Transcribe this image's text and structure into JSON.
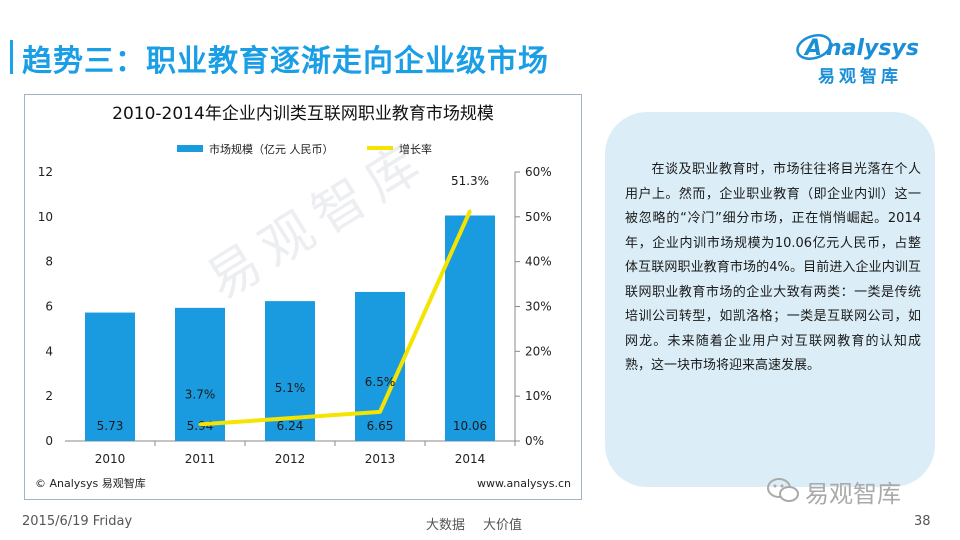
{
  "header": {
    "title": "趋势三：职业教育逐渐走向企业级市场",
    "logo_text": "nalysys",
    "logo_initial": "A",
    "logo_cn": "易观智库"
  },
  "chart_data": {
    "type": "bar",
    "title": "2010-2014年企业内训类互联网职业教育市场规模",
    "categories": [
      "2010",
      "2011",
      "2012",
      "2013",
      "2014"
    ],
    "series": [
      {
        "name": "市场规模（亿元 人民币）",
        "kind": "bar",
        "axis": "left",
        "values": [
          5.73,
          5.94,
          6.24,
          6.65,
          10.06
        ],
        "labels": [
          "5.73",
          "5.94",
          "6.24",
          "6.65",
          "10.06"
        ],
        "color": "#1a9be0"
      },
      {
        "name": "增长率",
        "kind": "line",
        "axis": "right",
        "values": [
          null,
          3.7,
          5.1,
          6.5,
          51.3
        ],
        "labels": [
          "",
          "3.7%",
          "5.1%",
          "6.5%",
          "51.3%"
        ],
        "color": "#f5e400"
      }
    ],
    "ylim_left": [
      0,
      12
    ],
    "yticks_left": [
      "0",
      "2",
      "4",
      "6",
      "8",
      "10",
      "12"
    ],
    "ylim_right": [
      0,
      60
    ],
    "yticks_right": [
      "0%",
      "10%",
      "20%",
      "30%",
      "40%",
      "50%",
      "60%"
    ],
    "source_left": "© Analysys 易观智库",
    "source_right": "www.analysys.cn",
    "watermark": "易观智库"
  },
  "note": {
    "text": "在谈及职业教育时，市场往往将目光落在个人用户上。然而，企业职业教育（即企业内训）这一被忽略的“冷门”细分市场，正在悄悄崛起。2014年，企业内训市场规模为10.06亿元人民币，占整体互联网职业教育市场的4%。目前进入企业内训互联网职业教育市场的企业大致有两类：一类是传统培训公司转型，如凯洛格；一类是互联网公司，如网龙。未来随着企业用户对互联网教育的认知成熟，这一块市场将迎来高速发展。"
  },
  "footer": {
    "date": "2015/6/19 Friday",
    "center_a": "大数据",
    "center_b": "大价值",
    "page": "38",
    "wechat": "易观智库"
  },
  "colors": {
    "accent": "#1a9ee6",
    "bar": "#1a9be0",
    "line": "#f5e400"
  }
}
